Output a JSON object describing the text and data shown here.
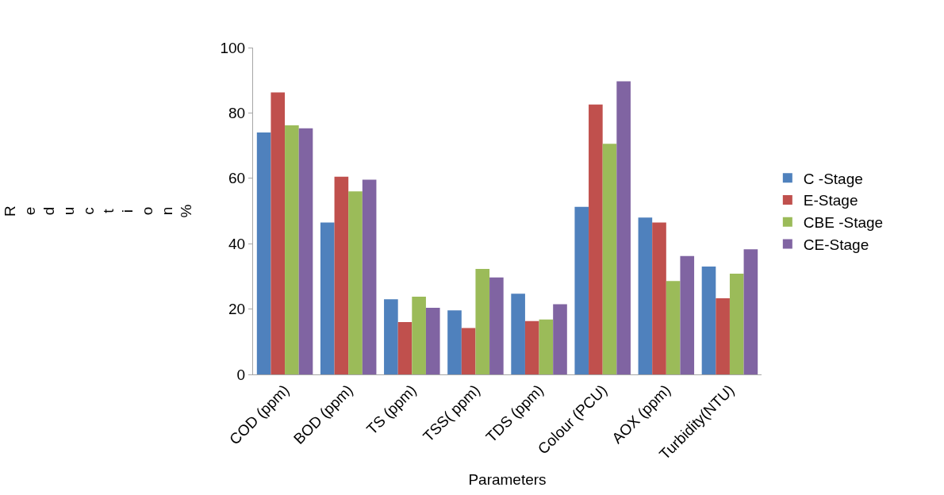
{
  "chart_data": {
    "type": "bar",
    "xlabel": "Parameters",
    "ylabel": "Reduction %",
    "categories": [
      "COD (ppm)",
      "BOD (ppm)",
      "TS (ppm)",
      "TSS( ppm)",
      "TDS (ppm)",
      "Colour (PCU)",
      "AOX (ppm)",
      "Turbidity(NTU)"
    ],
    "series": [
      {
        "name": "C -Stage",
        "color": "#4f81bd",
        "values": [
          74,
          46.5,
          23,
          19.6,
          24.7,
          51.3,
          48,
          33
        ]
      },
      {
        "name": "E-Stage",
        "color": "#c0504d",
        "values": [
          86.3,
          60.5,
          16,
          14.2,
          16.3,
          82.6,
          46.5,
          23.3
        ]
      },
      {
        "name": "CBE -Stage",
        "color": "#9bbb59",
        "values": [
          76.2,
          56,
          23.8,
          32.3,
          16.8,
          70.6,
          28.6,
          30.8
        ]
      },
      {
        "name": "CE-Stage",
        "color": "#8064a2",
        "values": [
          75.3,
          59.6,
          20.4,
          29.7,
          21.5,
          89.7,
          36.2,
          38.3
        ]
      }
    ],
    "ylim": [
      0,
      100
    ],
    "yticks": [
      0,
      20,
      40,
      60,
      80,
      100
    ],
    "grid": false,
    "legend": "right"
  }
}
